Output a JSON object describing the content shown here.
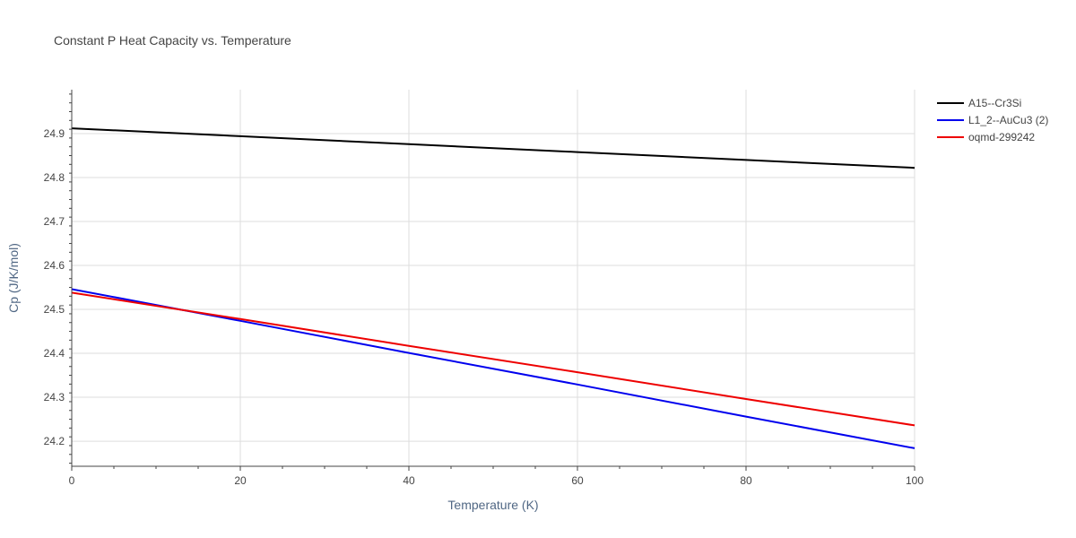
{
  "chart_data": {
    "type": "line",
    "title": "Constant P Heat Capacity vs. Temperature",
    "xlabel": "Temperature (K)",
    "ylabel": "Cp (J/K/mol)",
    "xlim": [
      0,
      100
    ],
    "ylim": [
      24.143,
      25.0
    ],
    "x_ticks": [
      0,
      20,
      40,
      60,
      80,
      100
    ],
    "y_ticks": [
      24.2,
      24.3,
      24.4,
      24.5,
      24.6,
      24.7,
      24.8,
      24.9
    ],
    "x_tick_labels": [
      "0",
      "20",
      "40",
      "60",
      "80",
      "100"
    ],
    "y_tick_labels": [
      "24.2",
      "24.3",
      "24.4",
      "24.5",
      "24.6",
      "24.7",
      "24.8",
      "24.9"
    ],
    "grid": true,
    "legend_position": "top-right",
    "series": [
      {
        "name": "A15--Cr3Si",
        "color": "#000000",
        "x": [
          0,
          20,
          40,
          60,
          80,
          100
        ],
        "y": [
          24.912,
          24.894,
          24.876,
          24.858,
          24.84,
          24.822
        ]
      },
      {
        "name": "L1_2--AuCu3 (2)",
        "color": "#0000ee",
        "x": [
          0,
          20,
          40,
          60,
          80,
          100
        ],
        "y": [
          24.546,
          24.474,
          24.401,
          24.329,
          24.256,
          24.184
        ]
      },
      {
        "name": "oqmd-299242",
        "color": "#ee0000",
        "x": [
          0,
          20,
          40,
          60,
          80,
          100
        ],
        "y": [
          24.538,
          24.478,
          24.417,
          24.357,
          24.296,
          24.236
        ]
      }
    ]
  }
}
